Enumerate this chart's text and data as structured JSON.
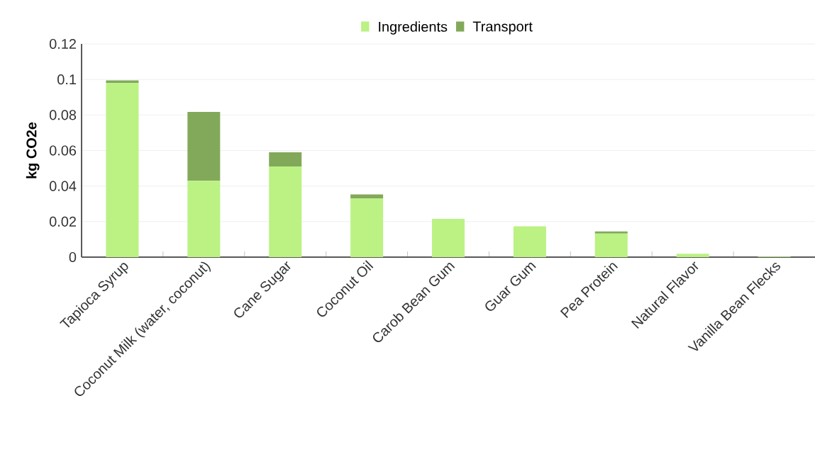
{
  "chart_data": {
    "type": "bar",
    "stacked": true,
    "ylabel": "kg CO2e",
    "categories": [
      "Tapioca Syrup",
      "Coconut Milk (water, coconut)",
      "Cane Sugar",
      "Coconut Oil",
      "Carob Bean Gum",
      "Guar Gum",
      "Pea Protein",
      "Natural Flavor",
      "Vanilla Bean Flecks"
    ],
    "series": [
      {
        "name": "Ingredients",
        "color": "#bbf283",
        "values": [
          0.098,
          0.043,
          0.051,
          0.033,
          0.0215,
          0.0173,
          0.0133,
          0.0019,
          0.0003
        ]
      },
      {
        "name": "Transport",
        "color": "#82a95a",
        "values": [
          0.0015,
          0.0387,
          0.008,
          0.0023,
          0,
          0,
          0.0012,
          0,
          0
        ]
      }
    ],
    "ylim": [
      0,
      0.12
    ],
    "yticks": [
      0,
      0.02,
      0.04,
      0.06,
      0.08,
      0.1,
      0.12
    ],
    "grid": "y",
    "legend": "top"
  }
}
